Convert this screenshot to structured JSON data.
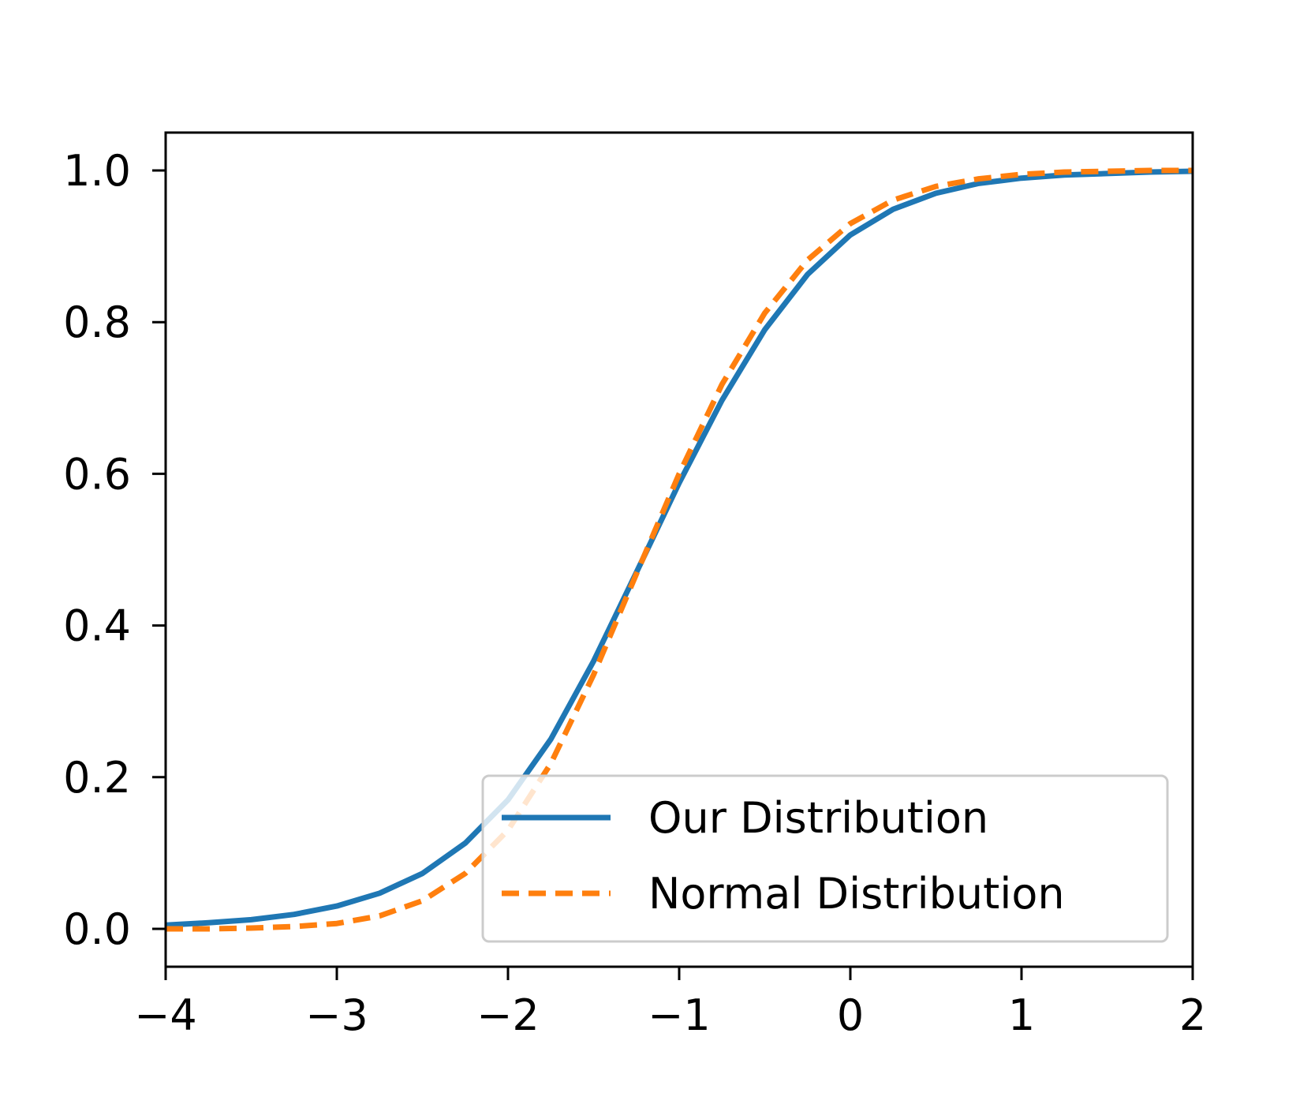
{
  "chart_data": {
    "type": "line",
    "title": "",
    "xlabel": "",
    "ylabel": "",
    "xlim": [
      -4,
      2
    ],
    "ylim": [
      -0.05,
      1.05
    ],
    "grid": false,
    "legend_position": "lower-right",
    "x_ticks": [
      -4,
      -3,
      -2,
      -1,
      0,
      1,
      2
    ],
    "x_tick_labels": [
      "−4",
      "−3",
      "−2",
      "−1",
      "0",
      "1",
      "2"
    ],
    "y_ticks": [
      0.0,
      0.2,
      0.4,
      0.6,
      0.8,
      1.0
    ],
    "y_tick_labels": [
      "0.0",
      "0.2",
      "0.4",
      "0.6",
      "0.8",
      "1.0"
    ],
    "x": [
      -4.0,
      -3.75,
      -3.5,
      -3.25,
      -3.0,
      -2.75,
      -2.5,
      -2.25,
      -2.0,
      -1.75,
      -1.5,
      -1.25,
      -1.0,
      -0.75,
      -0.5,
      -0.25,
      0.0,
      0.25,
      0.5,
      0.75,
      1.0,
      1.25,
      1.5,
      1.75,
      2.0
    ],
    "series": [
      {
        "name": "Our Distribution",
        "color": "#1f77b4",
        "style": "solid",
        "values": [
          0.005,
          0.008,
          0.012,
          0.019,
          0.03,
          0.047,
          0.073,
          0.113,
          0.17,
          0.25,
          0.353,
          0.47,
          0.588,
          0.697,
          0.79,
          0.863,
          0.915,
          0.949,
          0.97,
          0.983,
          0.99,
          0.994,
          0.996,
          0.998,
          0.999
        ]
      },
      {
        "name": "Normal Distribution",
        "color": "#ff7f0e",
        "style": "dashed",
        "values": [
          0.0,
          0.0,
          0.001,
          0.003,
          0.007,
          0.017,
          0.037,
          0.073,
          0.13,
          0.218,
          0.335,
          0.468,
          0.6,
          0.718,
          0.812,
          0.882,
          0.93,
          0.961,
          0.979,
          0.989,
          0.995,
          0.998,
          0.999,
          1.0,
          1.0
        ]
      }
    ]
  }
}
